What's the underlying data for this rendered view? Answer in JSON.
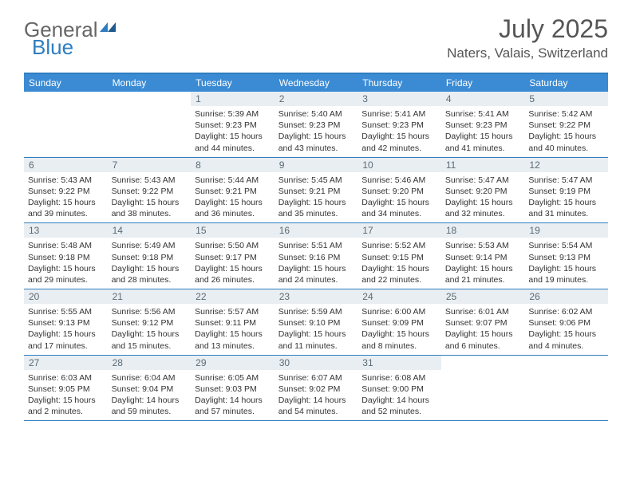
{
  "logo": {
    "text1": "General",
    "text2": "Blue"
  },
  "title": "July 2025",
  "location": "Naters, Valais, Switzerland",
  "colors": {
    "header_bar": "#3b8bd4",
    "border": "#2f7dc0",
    "date_bg": "#e9eef2",
    "date_text": "#5b6b75",
    "body_text": "#333333"
  },
  "day_names": [
    "Sunday",
    "Monday",
    "Tuesday",
    "Wednesday",
    "Thursday",
    "Friday",
    "Saturday"
  ],
  "weeks": [
    [
      {
        "empty": true
      },
      {
        "empty": true
      },
      {
        "date": "1",
        "sunrise": "5:39 AM",
        "sunset": "9:23 PM",
        "daylight": "15 hours and 44 minutes."
      },
      {
        "date": "2",
        "sunrise": "5:40 AM",
        "sunset": "9:23 PM",
        "daylight": "15 hours and 43 minutes."
      },
      {
        "date": "3",
        "sunrise": "5:41 AM",
        "sunset": "9:23 PM",
        "daylight": "15 hours and 42 minutes."
      },
      {
        "date": "4",
        "sunrise": "5:41 AM",
        "sunset": "9:23 PM",
        "daylight": "15 hours and 41 minutes."
      },
      {
        "date": "5",
        "sunrise": "5:42 AM",
        "sunset": "9:22 PM",
        "daylight": "15 hours and 40 minutes."
      }
    ],
    [
      {
        "date": "6",
        "sunrise": "5:43 AM",
        "sunset": "9:22 PM",
        "daylight": "15 hours and 39 minutes."
      },
      {
        "date": "7",
        "sunrise": "5:43 AM",
        "sunset": "9:22 PM",
        "daylight": "15 hours and 38 minutes."
      },
      {
        "date": "8",
        "sunrise": "5:44 AM",
        "sunset": "9:21 PM",
        "daylight": "15 hours and 36 minutes."
      },
      {
        "date": "9",
        "sunrise": "5:45 AM",
        "sunset": "9:21 PM",
        "daylight": "15 hours and 35 minutes."
      },
      {
        "date": "10",
        "sunrise": "5:46 AM",
        "sunset": "9:20 PM",
        "daylight": "15 hours and 34 minutes."
      },
      {
        "date": "11",
        "sunrise": "5:47 AM",
        "sunset": "9:20 PM",
        "daylight": "15 hours and 32 minutes."
      },
      {
        "date": "12",
        "sunrise": "5:47 AM",
        "sunset": "9:19 PM",
        "daylight": "15 hours and 31 minutes."
      }
    ],
    [
      {
        "date": "13",
        "sunrise": "5:48 AM",
        "sunset": "9:18 PM",
        "daylight": "15 hours and 29 minutes."
      },
      {
        "date": "14",
        "sunrise": "5:49 AM",
        "sunset": "9:18 PM",
        "daylight": "15 hours and 28 minutes."
      },
      {
        "date": "15",
        "sunrise": "5:50 AM",
        "sunset": "9:17 PM",
        "daylight": "15 hours and 26 minutes."
      },
      {
        "date": "16",
        "sunrise": "5:51 AM",
        "sunset": "9:16 PM",
        "daylight": "15 hours and 24 minutes."
      },
      {
        "date": "17",
        "sunrise": "5:52 AM",
        "sunset": "9:15 PM",
        "daylight": "15 hours and 22 minutes."
      },
      {
        "date": "18",
        "sunrise": "5:53 AM",
        "sunset": "9:14 PM",
        "daylight": "15 hours and 21 minutes."
      },
      {
        "date": "19",
        "sunrise": "5:54 AM",
        "sunset": "9:13 PM",
        "daylight": "15 hours and 19 minutes."
      }
    ],
    [
      {
        "date": "20",
        "sunrise": "5:55 AM",
        "sunset": "9:13 PM",
        "daylight": "15 hours and 17 minutes."
      },
      {
        "date": "21",
        "sunrise": "5:56 AM",
        "sunset": "9:12 PM",
        "daylight": "15 hours and 15 minutes."
      },
      {
        "date": "22",
        "sunrise": "5:57 AM",
        "sunset": "9:11 PM",
        "daylight": "15 hours and 13 minutes."
      },
      {
        "date": "23",
        "sunrise": "5:59 AM",
        "sunset": "9:10 PM",
        "daylight": "15 hours and 11 minutes."
      },
      {
        "date": "24",
        "sunrise": "6:00 AM",
        "sunset": "9:09 PM",
        "daylight": "15 hours and 8 minutes."
      },
      {
        "date": "25",
        "sunrise": "6:01 AM",
        "sunset": "9:07 PM",
        "daylight": "15 hours and 6 minutes."
      },
      {
        "date": "26",
        "sunrise": "6:02 AM",
        "sunset": "9:06 PM",
        "daylight": "15 hours and 4 minutes."
      }
    ],
    [
      {
        "date": "27",
        "sunrise": "6:03 AM",
        "sunset": "9:05 PM",
        "daylight": "15 hours and 2 minutes."
      },
      {
        "date": "28",
        "sunrise": "6:04 AM",
        "sunset": "9:04 PM",
        "daylight": "14 hours and 59 minutes."
      },
      {
        "date": "29",
        "sunrise": "6:05 AM",
        "sunset": "9:03 PM",
        "daylight": "14 hours and 57 minutes."
      },
      {
        "date": "30",
        "sunrise": "6:07 AM",
        "sunset": "9:02 PM",
        "daylight": "14 hours and 54 minutes."
      },
      {
        "date": "31",
        "sunrise": "6:08 AM",
        "sunset": "9:00 PM",
        "daylight": "14 hours and 52 minutes."
      },
      {
        "empty": true
      },
      {
        "empty": true
      }
    ]
  ],
  "labels": {
    "sunrise": "Sunrise:",
    "sunset": "Sunset:",
    "daylight": "Daylight:"
  }
}
